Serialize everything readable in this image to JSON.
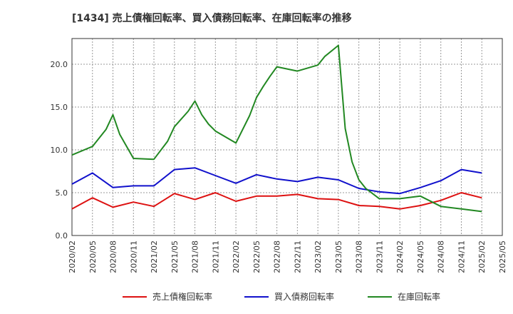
{
  "chart_data": {
    "type": "line",
    "title": "[1434]  売上債権回転率、買入債務回転率、在庫回転率の推移",
    "xlabel": "",
    "ylabel": "",
    "ylim": [
      0,
      23
    ],
    "yticks": [
      0,
      5,
      10,
      15,
      20
    ],
    "ytick_labels": [
      "0.0",
      "5.0",
      "10.0",
      "15.0",
      "20.0"
    ],
    "grid": true,
    "legend_position": "bottom",
    "x_ticks": [
      "2020/02",
      "2020/05",
      "2020/08",
      "2020/11",
      "2021/02",
      "2021/05",
      "2021/08",
      "2021/11",
      "2022/02",
      "2022/05",
      "2022/08",
      "2022/11",
      "2023/02",
      "2023/05",
      "2023/08",
      "2023/11",
      "2024/02",
      "2024/05",
      "2024/08",
      "2024/11",
      "2025/02",
      "2025/05"
    ],
    "x": [
      "2020/02",
      "2020/03",
      "2020/05",
      "2020/07",
      "2020/08",
      "2020/09",
      "2020/11",
      "2021/02",
      "2021/04",
      "2021/05",
      "2021/07",
      "2021/08",
      "2021/09",
      "2021/10",
      "2021/11",
      "2022/02",
      "2022/04",
      "2022/05",
      "2022/06",
      "2022/07",
      "2022/08",
      "2022/11",
      "2023/02",
      "2023/03",
      "2023/05",
      "2023/06",
      "2023/07",
      "2023/08",
      "2023/09",
      "2023/11",
      "2024/02",
      "2024/05",
      "2024/08",
      "2024/11",
      "2025/02"
    ],
    "series": [
      {
        "name": "売上債権回転率",
        "color": "#dd1111",
        "points": [
          [
            "2020/02",
            3.1
          ],
          [
            "2020/05",
            4.4
          ],
          [
            "2020/08",
            3.3
          ],
          [
            "2020/11",
            3.9
          ],
          [
            "2021/02",
            3.4
          ],
          [
            "2021/05",
            4.9
          ],
          [
            "2021/08",
            4.2
          ],
          [
            "2021/11",
            5.0
          ],
          [
            "2022/02",
            4.0
          ],
          [
            "2022/05",
            4.6
          ],
          [
            "2022/08",
            4.6
          ],
          [
            "2022/11",
            4.8
          ],
          [
            "2023/02",
            4.3
          ],
          [
            "2023/05",
            4.2
          ],
          [
            "2023/08",
            3.5
          ],
          [
            "2023/11",
            3.4
          ],
          [
            "2024/02",
            3.1
          ],
          [
            "2024/05",
            3.5
          ],
          [
            "2024/08",
            4.1
          ],
          [
            "2024/11",
            5.0
          ],
          [
            "2025/02",
            4.4
          ]
        ]
      },
      {
        "name": "買入債務回転率",
        "color": "#1111cc",
        "points": [
          [
            "2020/02",
            6.0
          ],
          [
            "2020/05",
            7.3
          ],
          [
            "2020/08",
            5.6
          ],
          [
            "2020/11",
            5.8
          ],
          [
            "2021/02",
            5.8
          ],
          [
            "2021/05",
            7.7
          ],
          [
            "2021/08",
            7.9
          ],
          [
            "2021/11",
            7.0
          ],
          [
            "2022/02",
            6.1
          ],
          [
            "2022/05",
            7.1
          ],
          [
            "2022/08",
            6.6
          ],
          [
            "2022/11",
            6.3
          ],
          [
            "2023/02",
            6.8
          ],
          [
            "2023/05",
            6.5
          ],
          [
            "2023/08",
            5.5
          ],
          [
            "2023/11",
            5.1
          ],
          [
            "2024/02",
            4.9
          ],
          [
            "2024/05",
            5.6
          ],
          [
            "2024/08",
            6.4
          ],
          [
            "2024/11",
            7.7
          ],
          [
            "2025/02",
            7.3
          ]
        ]
      },
      {
        "name": "在庫回転率",
        "color": "#228822",
        "points": [
          [
            "2020/02",
            9.4
          ],
          [
            "2020/05",
            10.4
          ],
          [
            "2020/07",
            12.4
          ],
          [
            "2020/08",
            14.1
          ],
          [
            "2020/09",
            11.8
          ],
          [
            "2020/11",
            9.0
          ],
          [
            "2021/02",
            8.9
          ],
          [
            "2021/04",
            11.0
          ],
          [
            "2021/05",
            12.7
          ],
          [
            "2021/07",
            14.5
          ],
          [
            "2021/08",
            15.7
          ],
          [
            "2021/09",
            14.1
          ],
          [
            "2021/10",
            13.0
          ],
          [
            "2021/11",
            12.2
          ],
          [
            "2022/02",
            10.8
          ],
          [
            "2022/04",
            14.0
          ],
          [
            "2022/05",
            16.1
          ],
          [
            "2022/06",
            17.4
          ],
          [
            "2022/07",
            18.6
          ],
          [
            "2022/08",
            19.7
          ],
          [
            "2022/11",
            19.2
          ],
          [
            "2023/02",
            19.9
          ],
          [
            "2023/03",
            20.9
          ],
          [
            "2023/05",
            22.2
          ],
          [
            "2023/06",
            12.5
          ],
          [
            "2023/07",
            8.6
          ],
          [
            "2023/08",
            6.5
          ],
          [
            "2023/09",
            5.5
          ],
          [
            "2023/11",
            4.3
          ],
          [
            "2024/02",
            4.3
          ],
          [
            "2024/05",
            4.6
          ],
          [
            "2024/08",
            3.4
          ],
          [
            "2024/11",
            3.1
          ],
          [
            "2025/02",
            2.8
          ]
        ]
      }
    ]
  }
}
